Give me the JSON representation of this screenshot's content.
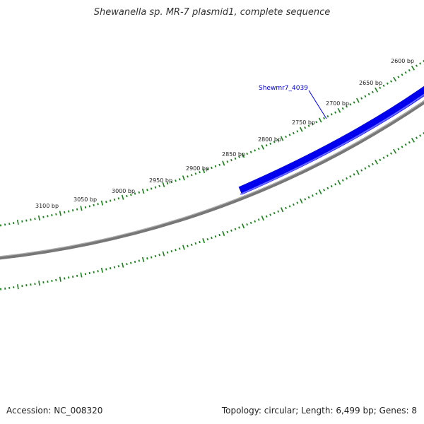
{
  "title": "Shewanella sp. MR-7 plasmid1, complete sequence",
  "footer": {
    "accession": "Accession: NC_008320",
    "summary": "Topology: circular; Length: 6,499 bp; Genes: 8"
  },
  "colors": {
    "gene": "#0000ee",
    "gene_label": "#0000cc",
    "backbone": "#777777",
    "tick": "#1a7f1a"
  },
  "genes": [
    {
      "name": "Shewmr7_4039"
    }
  ],
  "scale_labels": [
    "2600 bp",
    "2650 bp",
    "2700 bp",
    "2750 bp",
    "2800 bp",
    "2850 bp",
    "2900 bp",
    "2950 bp",
    "3000 bp",
    "3050 bp",
    "3100 bp"
  ]
}
